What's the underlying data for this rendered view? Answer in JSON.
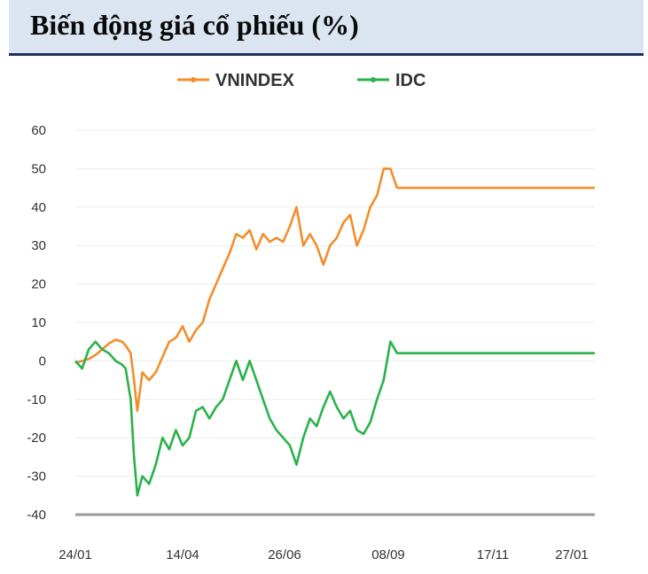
{
  "header": {
    "title": "Biến động giá cổ phiếu (%)"
  },
  "chart_data": {
    "type": "line",
    "title": "Biến động giá cổ phiếu (%)",
    "xlabel": "",
    "ylabel": "",
    "ylim": [
      -40,
      60
    ],
    "yticks": [
      "60",
      "50",
      "40",
      "30",
      "20",
      "10",
      "0",
      "-10",
      "-20",
      "-30",
      "-40"
    ],
    "xticks": [
      "24/01",
      "14/04",
      "26/06",
      "08/09",
      "17/11",
      "27/01"
    ],
    "grid": true,
    "legend_position": "top-center",
    "x_index": [
      0,
      4,
      8,
      12,
      16,
      20,
      24,
      28,
      30,
      33,
      35,
      37,
      40,
      44,
      48,
      52,
      56,
      60,
      64,
      68,
      72,
      76,
      80,
      84,
      88,
      92,
      96,
      100,
      104,
      108,
      112,
      116,
      120,
      124,
      128,
      132,
      136,
      140,
      144,
      148,
      152,
      156,
      160,
      164,
      168,
      172,
      176,
      180,
      184,
      188,
      192,
      196,
      200,
      204,
      208,
      212,
      216,
      220,
      224,
      228,
      232,
      236,
      240,
      244,
      248,
      252,
      256,
      260,
      264,
      268,
      272,
      276,
      280,
      284,
      288,
      292,
      296,
      300,
      304,
      307,
      310
    ],
    "series": [
      {
        "name": "VNINDEX",
        "color": "#f28e2b",
        "values": [
          -0.5,
          0,
          0.5,
          1.5,
          3,
          4.5,
          5.5,
          5,
          4,
          2,
          -5,
          -13,
          -3,
          -5,
          -3,
          1,
          5,
          6,
          9,
          5,
          8,
          10,
          16,
          20,
          24,
          28,
          33,
          32,
          34,
          29,
          33,
          31,
          32,
          31,
          35,
          40,
          30,
          33,
          30,
          25,
          30,
          32,
          36,
          38,
          30,
          34,
          40,
          43,
          50,
          50,
          45,
          45,
          45,
          45,
          45,
          45,
          45,
          45,
          45,
          45,
          45,
          45,
          45,
          45,
          45,
          45,
          45,
          45,
          45,
          45,
          45,
          45,
          45,
          45,
          45,
          45,
          45,
          45,
          45,
          45,
          45
        ]
      },
      {
        "name": "IDC",
        "color": "#2ab24a",
        "values": [
          0,
          -2,
          3,
          5,
          3,
          2,
          0,
          -1,
          -2,
          -10,
          -25,
          -35,
          -30,
          -32,
          -27,
          -20,
          -23,
          -18,
          -22,
          -20,
          -13,
          -12,
          -15,
          -12,
          -10,
          -5,
          0,
          -5,
          0,
          -5,
          -10,
          -15,
          -18,
          -20,
          -22,
          -27,
          -20,
          -15,
          -17,
          -12,
          -8,
          -12,
          -15,
          -13,
          -18,
          -19,
          -16,
          -10,
          -5,
          5,
          2,
          2,
          2,
          2,
          2,
          2,
          2,
          2,
          2,
          2,
          2,
          2,
          2,
          2,
          2,
          2,
          2,
          2,
          2,
          2,
          2,
          2,
          2,
          2,
          2,
          2,
          2,
          2,
          2,
          2,
          2
        ]
      }
    ]
  }
}
